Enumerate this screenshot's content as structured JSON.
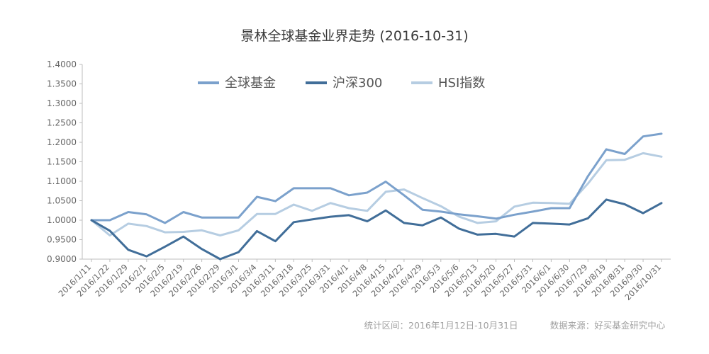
{
  "chart_data": {
    "type": "line",
    "title": "景林全球基金业界走势 (2016-10-31)",
    "x": [
      "2016/1/11",
      "2016/1/22",
      "2016/1/29",
      "2016/2/1",
      "2016/2/5",
      "2016/2/19",
      "2016/2/26",
      "2016/2/29",
      "2016/3/1",
      "2016/3/4",
      "2016/3/11",
      "2016/3/18",
      "2016/3/25",
      "2016/3/31",
      "2016/4/1",
      "2016/4/8",
      "2016/4/15",
      "2016/4/22",
      "2016/4/29",
      "2016/5/3",
      "2016/5/6",
      "2016/5/13",
      "2016/5/20",
      "2016/5/27",
      "2016/5/31",
      "2016/6/1",
      "2016/6/30",
      "2016/7/29",
      "2016/8/19",
      "2016/8/31",
      "2016/9/30",
      "2016/10/31"
    ],
    "ylim": [
      0.9,
      1.4
    ],
    "yticks": [
      "0.9000",
      "0.9500",
      "1.0000",
      "1.0500",
      "1.1000",
      "1.1500",
      "1.2000",
      "1.2500",
      "1.3000",
      "1.3500",
      "1.4000"
    ],
    "grid": false,
    "legend_position": "top-center",
    "series": [
      {
        "name": "全球基金",
        "color": "#7ba1cc",
        "values": [
          1.0,
          1.0,
          1.021,
          1.015,
          0.993,
          1.021,
          1.007,
          1.007,
          1.007,
          1.06,
          1.049,
          1.082,
          1.082,
          1.082,
          1.064,
          1.071,
          1.099,
          1.064,
          1.027,
          1.022,
          1.015,
          1.01,
          1.004,
          1.014,
          1.022,
          1.031,
          1.031,
          1.113,
          1.182,
          1.17,
          1.215,
          1.222
        ]
      },
      {
        "name": "沪深300",
        "color": "#416e99",
        "values": [
          1.0,
          0.973,
          0.924,
          0.907,
          0.932,
          0.958,
          0.926,
          0.9,
          0.918,
          0.972,
          0.946,
          0.995,
          1.002,
          1.009,
          1.013,
          0.997,
          1.025,
          0.993,
          0.987,
          1.007,
          0.978,
          0.963,
          0.965,
          0.958,
          0.993,
          0.991,
          0.989,
          1.005,
          1.053,
          1.041,
          1.018,
          1.044
        ]
      },
      {
        "name": "HSI指数",
        "color": "#b6cde2",
        "values": [
          1.0,
          0.961,
          0.991,
          0.985,
          0.969,
          0.97,
          0.974,
          0.961,
          0.974,
          1.016,
          1.016,
          1.04,
          1.024,
          1.044,
          1.031,
          1.024,
          1.073,
          1.079,
          1.057,
          1.036,
          1.009,
          0.993,
          0.997,
          1.035,
          1.045,
          1.044,
          1.042,
          1.094,
          1.154,
          1.155,
          1.172,
          1.163
        ]
      }
    ]
  },
  "footer": {
    "range_text": "统计区间：2016年1月12日-10月31日",
    "source_text": "数据来源：好买基金研究中心"
  }
}
